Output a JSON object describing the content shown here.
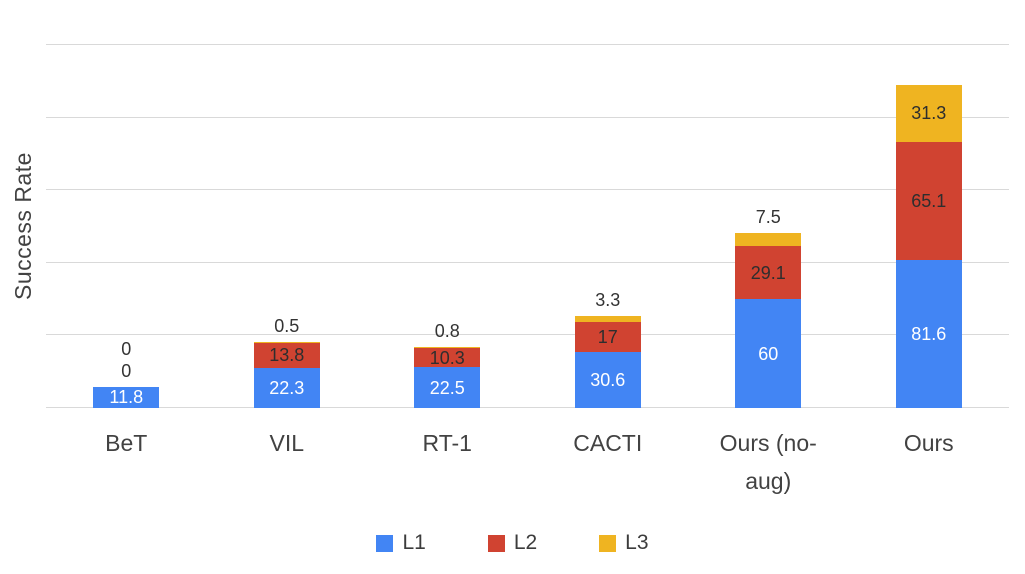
{
  "chart_data": {
    "type": "bar",
    "stacked": true,
    "title": "",
    "xlabel": "",
    "ylabel": "Success Rate",
    "ylim": [
      0,
      200
    ],
    "grid_step": 40,
    "grid": true,
    "legend_position": "bottom",
    "categories": [
      "BeT",
      "VIL",
      "RT-1",
      "CACTI",
      "Ours (no-aug)",
      "Ours"
    ],
    "series": [
      {
        "name": "L1",
        "color": "#4285F4",
        "values": [
          11.8,
          22.3,
          22.5,
          30.6,
          60,
          81.6
        ]
      },
      {
        "name": "L2",
        "color": "#D04331",
        "values": [
          0,
          13.8,
          10.3,
          17,
          29.1,
          65.1
        ]
      },
      {
        "name": "L3",
        "color": "#EFB421",
        "values": [
          0,
          0.5,
          0.8,
          3.3,
          7.5,
          31.3
        ]
      }
    ]
  }
}
